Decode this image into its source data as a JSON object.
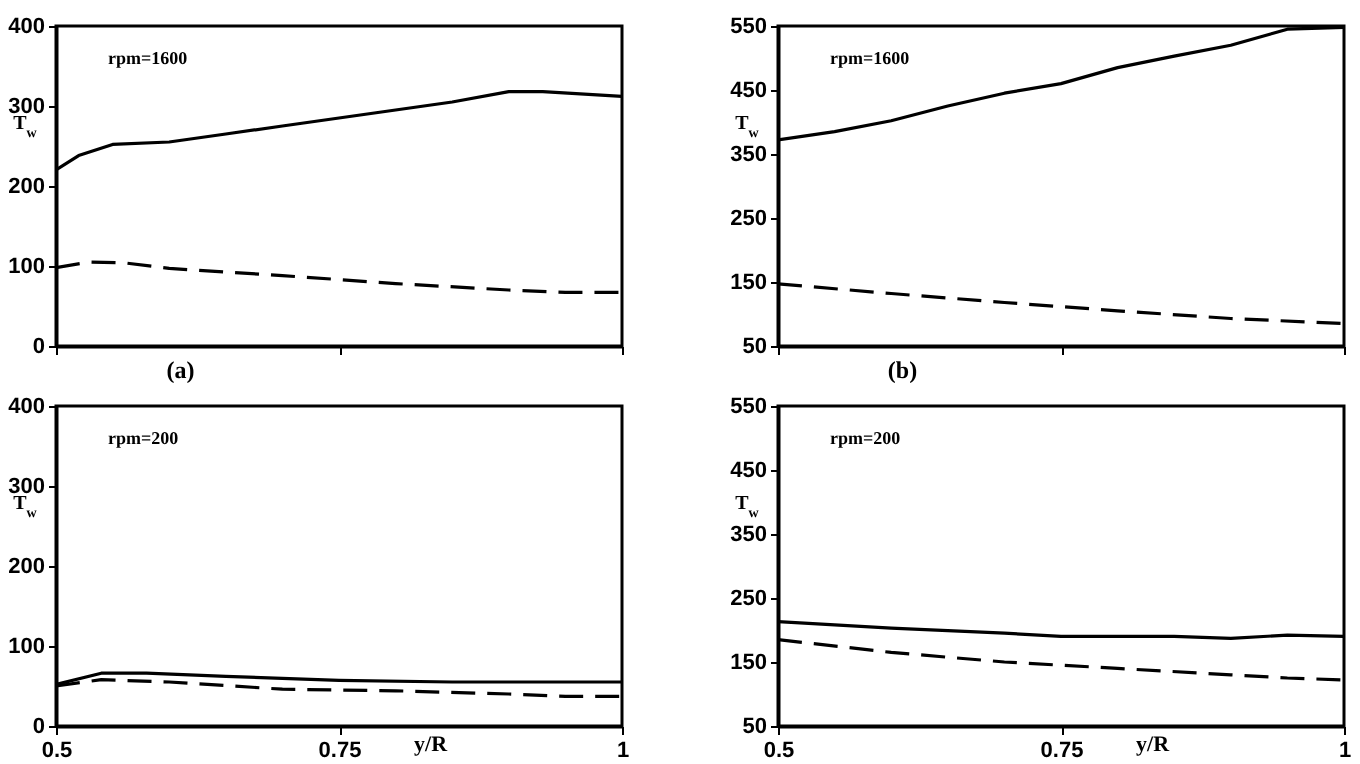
{
  "chart_data": [
    {
      "type": "line",
      "ylabel": "T$_{w}$",
      "annotations": [
        "rpm=1600",
        "(a)"
      ],
      "xlim": [
        0.5,
        1
      ],
      "xticks": [
        {
          "value": 0.5,
          "label": null
        },
        {
          "value": 0.75,
          "label": null
        },
        {
          "value": 1,
          "label": null
        }
      ],
      "ylim": [
        0,
        400
      ],
      "yticks": [
        0,
        100,
        200,
        300,
        400
      ],
      "tick_labels": "y",
      "grid": false,
      "marker": "none",
      "series": [
        {
          "color": "#000000",
          "line_style": "solid",
          "x": [
            0.5,
            0.52,
            0.55,
            0.6,
            0.65,
            0.7,
            0.75,
            0.8,
            0.85,
            0.9,
            0.93,
            1
          ],
          "values": [
            220,
            238,
            252,
            255,
            265,
            275,
            285,
            295,
            305,
            318,
            318,
            312
          ]
        },
        {
          "color": "#000000",
          "line_style": "dashed",
          "x": [
            0.5,
            0.53,
            0.56,
            0.6,
            0.7,
            0.8,
            0.9,
            0.95,
            1
          ],
          "values": [
            98,
            105,
            104,
            97,
            88,
            78,
            70,
            67,
            67
          ]
        }
      ]
    },
    {
      "type": "line",
      "ylabel": "T$_{w}$",
      "annotations": [
        "rpm=1600",
        "(b)"
      ],
      "xlim": [
        0.5,
        1
      ],
      "xticks": [
        {
          "value": 0.5,
          "label": null
        },
        {
          "value": 0.75,
          "label": null
        },
        {
          "value": 1,
          "label": null
        }
      ],
      "ylim": [
        50,
        550
      ],
      "yticks": [
        50,
        150,
        250,
        350,
        450,
        550
      ],
      "tick_labels": "y",
      "grid": false,
      "marker": "none",
      "series": [
        {
          "color": "#000000",
          "line_style": "solid",
          "x": [
            0.5,
            0.55,
            0.6,
            0.65,
            0.7,
            0.75,
            0.8,
            0.85,
            0.9,
            0.95,
            1
          ],
          "values": [
            372,
            385,
            402,
            425,
            445,
            460,
            485,
            503,
            520,
            545,
            548
          ]
        },
        {
          "color": "#000000",
          "line_style": "dashed",
          "x": [
            0.5,
            0.6,
            0.7,
            0.8,
            0.9,
            1
          ],
          "values": [
            147,
            132,
            118,
            105,
            93,
            85
          ]
        }
      ]
    },
    {
      "type": "line",
      "xlabel": "y/R",
      "ylabel": "T$_{w}$",
      "annotations": [
        "rpm=200"
      ],
      "xlim": [
        0.5,
        1
      ],
      "xticks": [
        0.5,
        0.75,
        1
      ],
      "ylim": [
        0,
        400
      ],
      "yticks": [
        0,
        100,
        200,
        300,
        400
      ],
      "grid": false,
      "marker": "none",
      "series": [
        {
          "color": "#000000",
          "line_style": "solid",
          "x": [
            0.5,
            0.54,
            0.58,
            0.65,
            0.75,
            0.85,
            1
          ],
          "values": [
            52,
            66,
            66,
            62,
            57,
            55,
            55
          ]
        },
        {
          "color": "#000000",
          "line_style": "dashed",
          "x": [
            0.5,
            0.54,
            0.6,
            0.7,
            0.8,
            0.9,
            0.95,
            1
          ],
          "values": [
            50,
            58,
            55,
            46,
            44,
            40,
            37,
            37
          ]
        }
      ]
    },
    {
      "type": "line",
      "xlabel": "y/R",
      "ylabel": "T$_{w}$",
      "annotations": [
        "rpm=200"
      ],
      "xlim": [
        0.5,
        1
      ],
      "xticks": [
        0.5,
        0.75,
        1
      ],
      "ylim": [
        50,
        550
      ],
      "yticks": [
        50,
        150,
        250,
        350,
        450,
        550
      ],
      "grid": false,
      "marker": "none",
      "series": [
        {
          "color": "#000000",
          "line_style": "solid",
          "x": [
            0.5,
            0.6,
            0.7,
            0.75,
            0.85,
            0.9,
            0.95,
            1
          ],
          "values": [
            213,
            203,
            195,
            190,
            190,
            187,
            192,
            190
          ]
        },
        {
          "color": "#000000",
          "line_style": "dashed",
          "x": [
            0.5,
            0.6,
            0.7,
            0.8,
            0.9,
            0.95,
            1
          ],
          "values": [
            185,
            165,
            150,
            140,
            130,
            125,
            122
          ]
        }
      ]
    }
  ]
}
